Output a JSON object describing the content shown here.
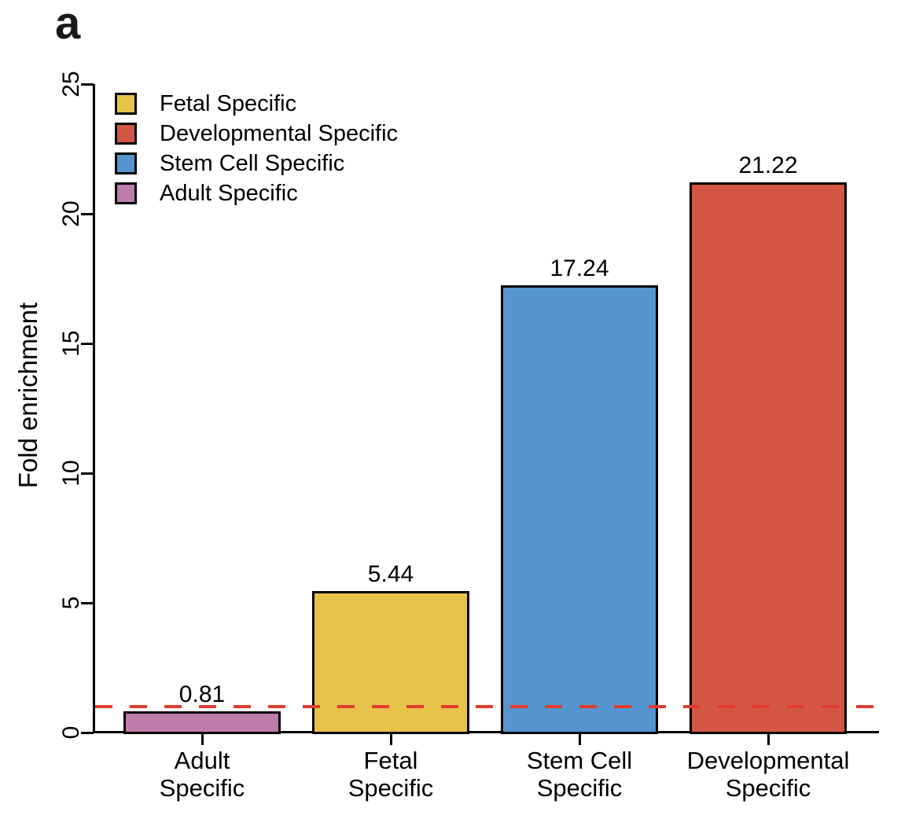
{
  "panel_label": "a",
  "chart_data": {
    "type": "bar",
    "title": "",
    "xlabel": "",
    "ylabel": "Fold enrichment",
    "ylim": [
      0,
      25
    ],
    "yticks": [
      0,
      5,
      10,
      15,
      20,
      25
    ],
    "grid": false,
    "categories": [
      "Adult Specific",
      "Fetal Specific",
      "Stem Cell Specific",
      "Developmental Specific"
    ],
    "tick_labels": [
      "Adult\nSpecific",
      "Fetal\nSpecific",
      "Stem Cell\nSpecific",
      "Developmental\nSpecific"
    ],
    "values": [
      0.81,
      5.44,
      17.24,
      21.22
    ],
    "value_labels": [
      "0.81",
      "5.44",
      "17.24",
      "21.22"
    ],
    "bar_colors": [
      "#BE7CAC",
      "#E7C24A",
      "#5594CE",
      "#D45745"
    ],
    "bar_border_color": "#000000",
    "axis_color": "#000000",
    "reference_line": {
      "y": 1,
      "style": "dashed",
      "color": "#E23B2E"
    },
    "legend": {
      "position": "top-left",
      "entries": [
        {
          "label": "Fetal Specific",
          "color": "#E7C24A"
        },
        {
          "label": "Developmental Specific",
          "color": "#D45745"
        },
        {
          "label": "Stem Cell Specific",
          "color": "#5594CE"
        },
        {
          "label": "Adult Specific",
          "color": "#BE7CAC"
        }
      ]
    }
  }
}
